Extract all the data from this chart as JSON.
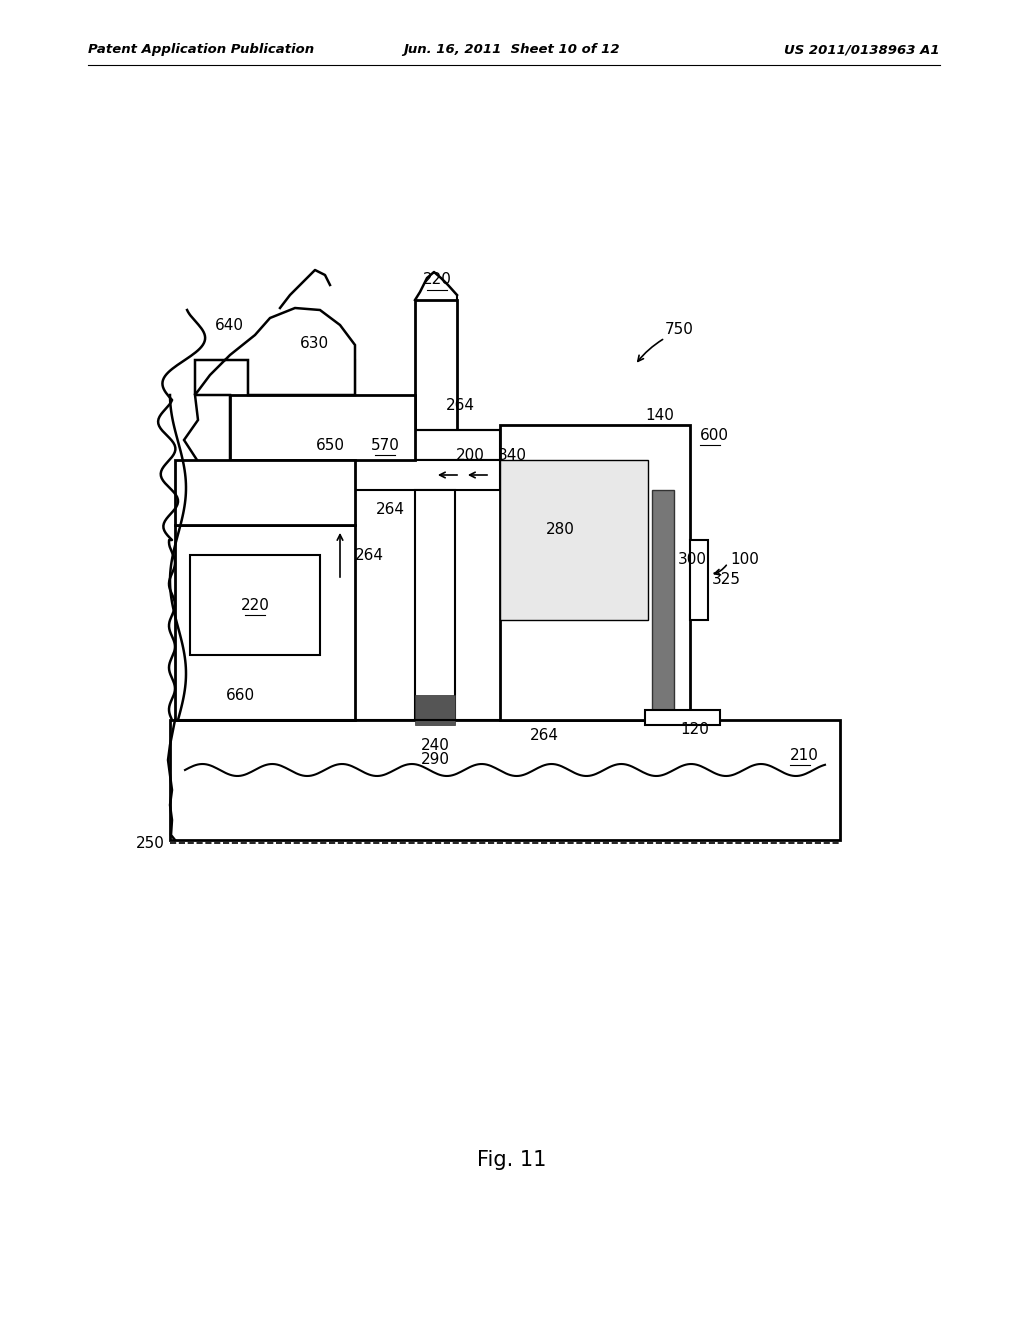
{
  "header_left": "Patent Application Publication",
  "header_mid": "Jun. 16, 2011  Sheet 10 of 12",
  "header_right": "US 2011/0138963 A1",
  "title": "Fig. 11",
  "bg_color": "#ffffff"
}
